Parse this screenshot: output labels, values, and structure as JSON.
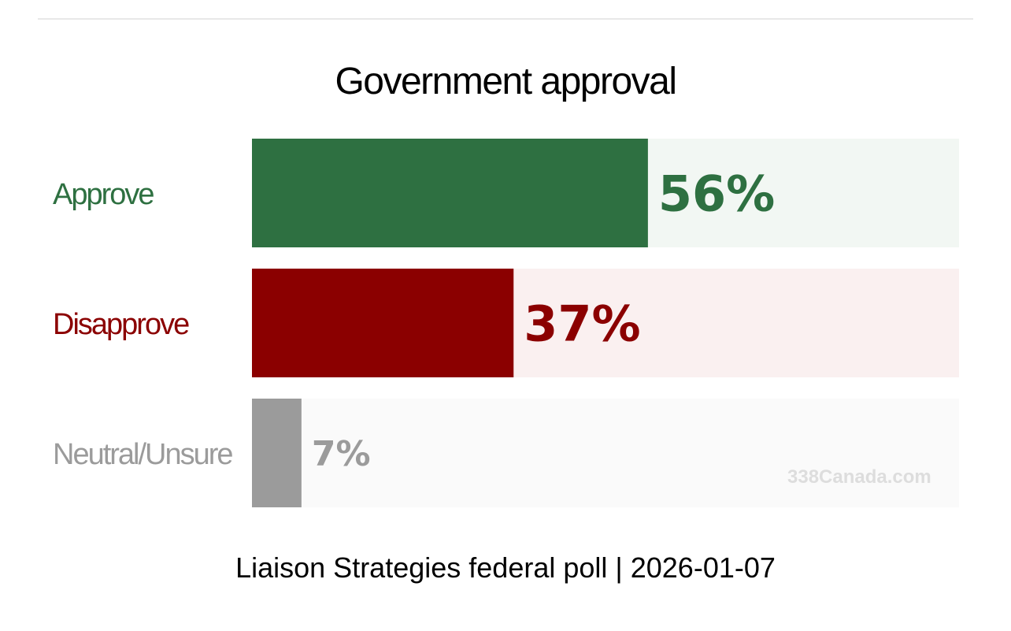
{
  "chart_data": {
    "type": "bar",
    "orientation": "horizontal",
    "title": "Government approval",
    "subtitle": "Liaison Strategies federal poll | 2026-01-07",
    "watermark": "338Canada.com",
    "xlim": [
      0,
      100
    ],
    "grid": false,
    "legend": "none",
    "categories": [
      "Approve",
      "Disapprove",
      "Neutral/Unsure"
    ],
    "values": [
      56,
      37,
      7
    ],
    "value_labels": [
      "56%",
      "37%",
      "7%"
    ],
    "colors": [
      "#2e7041",
      "#8b0000",
      "#9b9b9b"
    ],
    "track_colors": [
      "#f2f7f3",
      "#faf0f0",
      "#fafafa"
    ],
    "label_colors": [
      "#2e7041",
      "#8b0000",
      "#9b9b9b"
    ],
    "value_label_colors": [
      "#2e7041",
      "#8b0000",
      "#9b9b9b"
    ]
  }
}
